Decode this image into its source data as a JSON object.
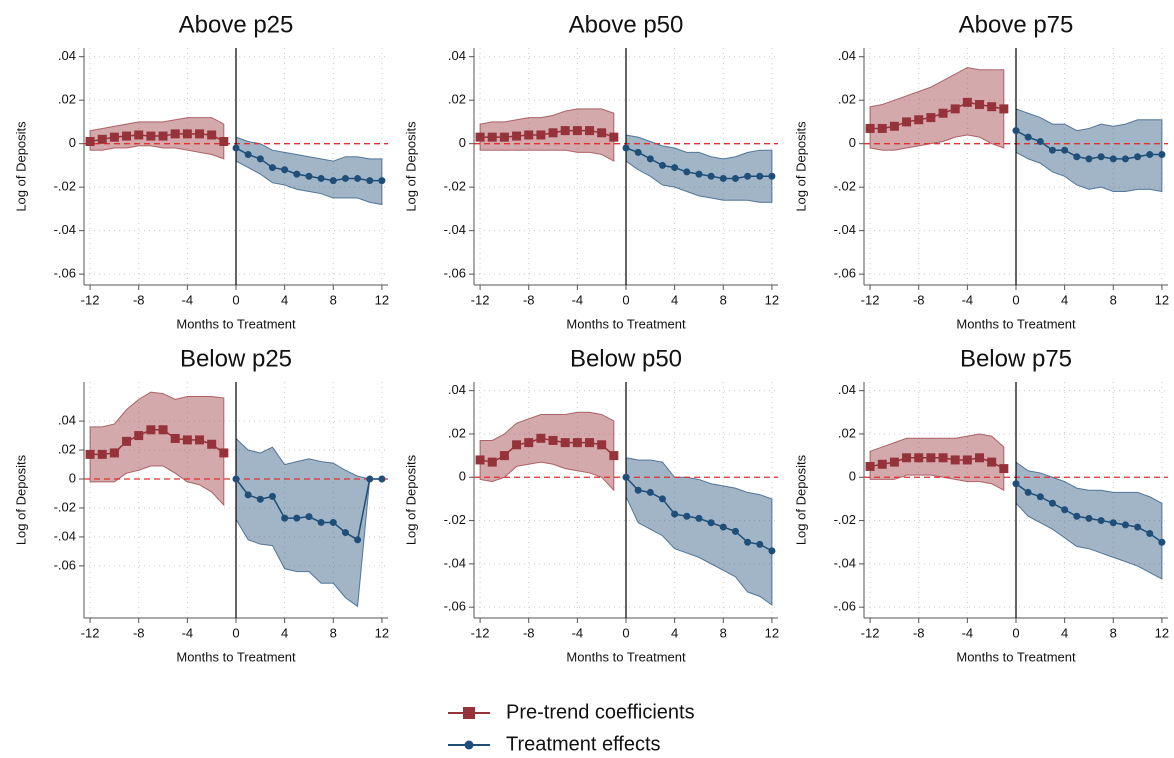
{
  "chart_data": [
    {
      "type": "line",
      "title": "Above p25",
      "x_label": "Months to Treatment",
      "y_label": "Log of Deposits",
      "xlim": [
        -12.5,
        12.5
      ],
      "xticks": [
        -12,
        -8,
        -4,
        0,
        4,
        8,
        12
      ],
      "ylim": [
        -0.065,
        0.044
      ],
      "yticks": [
        {
          "value": 0.04,
          "label": ".04"
        },
        {
          "value": 0.02,
          "label": ".02"
        },
        0,
        {
          "value": -0.02,
          "label": "-.02"
        },
        {
          "value": -0.04,
          "label": "-.04"
        },
        {
          "value": -0.06,
          "label": "-.06"
        }
      ],
      "grid": true,
      "series": [
        {
          "color": "#96333a",
          "marker": "square",
          "x": [
            -12,
            -11,
            -10,
            -9,
            -8,
            -7,
            -6,
            -5,
            -4,
            -3,
            -2,
            -1
          ],
          "values": [
            0.001,
            0.002,
            0.003,
            0.0035,
            0.004,
            0.0035,
            0.0035,
            0.0045,
            0.0045,
            0.0045,
            0.004,
            0.001
          ],
          "lower": [
            -0.003,
            -0.003,
            -0.002,
            -0.002,
            -0.001,
            -0.001,
            -0.002,
            -0.002,
            -0.003,
            -0.004,
            -0.005,
            -0.007
          ],
          "upper": [
            0.006,
            0.007,
            0.008,
            0.009,
            0.01,
            0.01,
            0.01,
            0.011,
            0.012,
            0.012,
            0.012,
            0.009
          ]
        },
        {
          "color": "#1f4e79",
          "marker": "circle",
          "x": [
            0,
            1,
            2,
            3,
            4,
            5,
            6,
            7,
            8,
            9,
            10,
            11,
            12
          ],
          "values": [
            -0.002,
            -0.005,
            -0.007,
            -0.011,
            -0.012,
            -0.014,
            -0.015,
            -0.016,
            -0.017,
            -0.016,
            -0.016,
            -0.017,
            -0.017
          ],
          "lower": [
            -0.008,
            -0.011,
            -0.014,
            -0.018,
            -0.019,
            -0.021,
            -0.022,
            -0.023,
            -0.025,
            -0.025,
            -0.025,
            -0.027,
            -0.028
          ],
          "upper": [
            0.003,
            0.001,
            0,
            -0.003,
            -0.004,
            -0.005,
            -0.006,
            -0.007,
            -0.008,
            -0.006,
            -0.006,
            -0.007,
            -0.007
          ]
        }
      ]
    },
    {
      "type": "line",
      "title": "Above p50",
      "x_label": "Months to Treatment",
      "y_label": "Log of Deposits",
      "xlim": [
        -12.5,
        12.5
      ],
      "xticks": [
        -12,
        -8,
        -4,
        0,
        4,
        8,
        12
      ],
      "ylim": [
        -0.065,
        0.044
      ],
      "yticks": [
        {
          "value": 0.04,
          "label": ".04"
        },
        {
          "value": 0.02,
          "label": ".02"
        },
        0,
        {
          "value": -0.02,
          "label": "-.02"
        },
        {
          "value": -0.04,
          "label": "-.04"
        },
        {
          "value": -0.06,
          "label": "-.06"
        }
      ],
      "grid": true,
      "series": [
        {
          "color": "#96333a",
          "marker": "square",
          "x": [
            -12,
            -11,
            -10,
            -9,
            -8,
            -7,
            -6,
            -5,
            -4,
            -3,
            -2,
            -1
          ],
          "values": [
            0.003,
            0.003,
            0.003,
            0.0035,
            0.004,
            0.004,
            0.005,
            0.006,
            0.006,
            0.006,
            0.005,
            0.003
          ],
          "lower": [
            -0.003,
            -0.003,
            -0.003,
            -0.003,
            -0.003,
            -0.003,
            -0.003,
            -0.003,
            -0.004,
            -0.004,
            -0.005,
            -0.008
          ],
          "upper": [
            0.009,
            0.01,
            0.01,
            0.011,
            0.012,
            0.012,
            0.013,
            0.015,
            0.016,
            0.016,
            0.016,
            0.014
          ]
        },
        {
          "color": "#1f4e79",
          "marker": "circle",
          "x": [
            0,
            1,
            2,
            3,
            4,
            5,
            6,
            7,
            8,
            9,
            10,
            11,
            12
          ],
          "values": [
            -0.002,
            -0.004,
            -0.007,
            -0.01,
            -0.011,
            -0.013,
            -0.014,
            -0.015,
            -0.016,
            -0.016,
            -0.015,
            -0.015,
            -0.015
          ],
          "lower": [
            -0.008,
            -0.012,
            -0.015,
            -0.019,
            -0.02,
            -0.022,
            -0.024,
            -0.025,
            -0.026,
            -0.026,
            -0.026,
            -0.027,
            -0.027
          ],
          "upper": [
            0.004,
            0.003,
            0.001,
            -0.001,
            -0.002,
            -0.004,
            -0.004,
            -0.006,
            -0.007,
            -0.006,
            -0.004,
            -0.003,
            -0.003
          ]
        }
      ]
    },
    {
      "type": "line",
      "title": "Above p75",
      "x_label": "Months to Treatment",
      "y_label": "Log of Deposits",
      "xlim": [
        -12.5,
        12.5
      ],
      "xticks": [
        -12,
        -8,
        -4,
        0,
        4,
        8,
        12
      ],
      "ylim": [
        -0.065,
        0.044
      ],
      "yticks": [
        {
          "value": 0.04,
          "label": ".04"
        },
        {
          "value": 0.02,
          "label": ".02"
        },
        0,
        {
          "value": -0.02,
          "label": "-.02"
        },
        {
          "value": -0.04,
          "label": "-.04"
        },
        {
          "value": -0.06,
          "label": "-.06"
        }
      ],
      "grid": true,
      "series": [
        {
          "color": "#96333a",
          "marker": "square",
          "x": [
            -12,
            -11,
            -10,
            -9,
            -8,
            -7,
            -6,
            -5,
            -4,
            -3,
            -2,
            -1
          ],
          "values": [
            0.007,
            0.007,
            0.008,
            0.01,
            0.011,
            0.012,
            0.014,
            0.016,
            0.019,
            0.018,
            0.017,
            0.016
          ],
          "lower": [
            -0.002,
            -0.003,
            -0.003,
            -0.002,
            -0.001,
            0,
            0.001,
            0.003,
            0.004,
            0.003,
            0,
            -0.002
          ],
          "upper": [
            0.017,
            0.018,
            0.02,
            0.022,
            0.024,
            0.026,
            0.029,
            0.032,
            0.035,
            0.034,
            0.034,
            0.034
          ]
        },
        {
          "color": "#1f4e79",
          "marker": "circle",
          "x": [
            0,
            1,
            2,
            3,
            4,
            5,
            6,
            7,
            8,
            9,
            10,
            11,
            12
          ],
          "values": [
            0.006,
            0.003,
            0.001,
            -0.003,
            -0.003,
            -0.006,
            -0.007,
            -0.006,
            -0.007,
            -0.007,
            -0.006,
            -0.005,
            -0.005
          ],
          "lower": [
            -0.004,
            -0.007,
            -0.009,
            -0.013,
            -0.015,
            -0.019,
            -0.021,
            -0.02,
            -0.022,
            -0.022,
            -0.021,
            -0.021,
            -0.022
          ],
          "upper": [
            0.016,
            0.014,
            0.012,
            0.009,
            0.009,
            0.006,
            0.007,
            0.009,
            0.008,
            0.009,
            0.011,
            0.011,
            0.011
          ]
        }
      ]
    },
    {
      "type": "line",
      "title": "Below p25",
      "x_label": "Months to Treatment",
      "y_label": "Log of Deposits",
      "xlim": [
        -12.5,
        12.5
      ],
      "xticks": [
        -12,
        -8,
        -4,
        0,
        4,
        8,
        12
      ],
      "ylim": [
        -0.096,
        0.067
      ],
      "yticks": [
        {
          "value": 0.04,
          "label": ".04"
        },
        {
          "value": 0.02,
          "label": ".02"
        },
        0,
        {
          "value": -0.02,
          "label": "-.02"
        },
        {
          "value": -0.04,
          "label": "-.04"
        },
        {
          "value": -0.06,
          "label": "-.06"
        }
      ],
      "grid": true,
      "series": [
        {
          "color": "#96333a",
          "marker": "square",
          "x": [
            -12,
            -11,
            -10,
            -9,
            -8,
            -7,
            -6,
            -5,
            -4,
            -3,
            -2,
            -1
          ],
          "values": [
            0.017,
            0.017,
            0.018,
            0.026,
            0.03,
            0.034,
            0.034,
            0.028,
            0.027,
            0.027,
            0.024,
            0.018
          ],
          "lower": [
            -0.002,
            -0.002,
            -0.002,
            0.004,
            0.006,
            0.009,
            0.009,
            0.004,
            -0.002,
            -0.004,
            -0.009,
            -0.018
          ],
          "upper": [
            0.036,
            0.036,
            0.038,
            0.048,
            0.055,
            0.06,
            0.059,
            0.055,
            0.057,
            0.057,
            0.057,
            0.056
          ]
        },
        {
          "color": "#1f4e79",
          "marker": "circle",
          "x": [
            0,
            1,
            2,
            3,
            4,
            5,
            6,
            7,
            8,
            9,
            10,
            11,
            12
          ],
          "values": [
            0,
            -0.011,
            -0.014,
            -0.012,
            -0.027,
            -0.027,
            -0.026,
            -0.03,
            -0.03,
            -0.037,
            -0.042,
            0,
            0
          ],
          "lower": [
            -0.028,
            -0.042,
            -0.045,
            -0.046,
            -0.062,
            -0.064,
            -0.064,
            -0.072,
            -0.072,
            -0.082,
            -0.088,
            0,
            0
          ],
          "upper": [
            0.028,
            0.02,
            0.018,
            0.022,
            0.01,
            0.012,
            0.014,
            0.012,
            0.011,
            0.006,
            0.002,
            0,
            0
          ]
        }
      ]
    },
    {
      "type": "line",
      "title": "Below p50",
      "x_label": "Months to Treatment",
      "y_label": "Log of Deposits",
      "xlim": [
        -12.5,
        12.5
      ],
      "xticks": [
        -12,
        -8,
        -4,
        0,
        4,
        8,
        12
      ],
      "ylim": [
        -0.065,
        0.044
      ],
      "yticks": [
        {
          "value": 0.04,
          "label": ".04"
        },
        {
          "value": 0.02,
          "label": ".02"
        },
        0,
        {
          "value": -0.02,
          "label": "-.02"
        },
        {
          "value": -0.04,
          "label": "-.04"
        },
        {
          "value": -0.06,
          "label": "-.06"
        }
      ],
      "grid": true,
      "series": [
        {
          "color": "#96333a",
          "marker": "square",
          "x": [
            -12,
            -11,
            -10,
            -9,
            -8,
            -7,
            -6,
            -5,
            -4,
            -3,
            -2,
            -1
          ],
          "values": [
            0.008,
            0.007,
            0.01,
            0.015,
            0.016,
            0.018,
            0.017,
            0.016,
            0.016,
            0.016,
            0.015,
            0.01
          ],
          "lower": [
            -0.001,
            -0.002,
            0,
            0.005,
            0.006,
            0.007,
            0.006,
            0.004,
            0.003,
            0.002,
            0,
            -0.006
          ],
          "upper": [
            0.017,
            0.017,
            0.02,
            0.025,
            0.027,
            0.029,
            0.029,
            0.029,
            0.03,
            0.03,
            0.029,
            0.026
          ]
        },
        {
          "color": "#1f4e79",
          "marker": "circle",
          "x": [
            0,
            1,
            2,
            3,
            4,
            5,
            6,
            7,
            8,
            9,
            10,
            11,
            12
          ],
          "values": [
            0,
            -0.006,
            -0.007,
            -0.01,
            -0.017,
            -0.018,
            -0.019,
            -0.021,
            -0.023,
            -0.025,
            -0.03,
            -0.031,
            -0.034
          ],
          "lower": [
            -0.009,
            -0.021,
            -0.024,
            -0.027,
            -0.033,
            -0.035,
            -0.037,
            -0.04,
            -0.043,
            -0.046,
            -0.053,
            -0.055,
            -0.059
          ],
          "upper": [
            0.009,
            0.008,
            0.008,
            0.007,
            0,
            0,
            -0.001,
            -0.003,
            -0.004,
            -0.005,
            -0.007,
            -0.008,
            -0.01
          ]
        }
      ]
    },
    {
      "type": "line",
      "title": "Below p75",
      "x_label": "Months to Treatment",
      "y_label": "Log of Deposits",
      "xlim": [
        -12.5,
        12.5
      ],
      "xticks": [
        -12,
        -8,
        -4,
        0,
        4,
        8,
        12
      ],
      "ylim": [
        -0.065,
        0.044
      ],
      "yticks": [
        {
          "value": 0.04,
          "label": ".04"
        },
        {
          "value": 0.02,
          "label": ".02"
        },
        0,
        {
          "value": -0.02,
          "label": "-.02"
        },
        {
          "value": -0.04,
          "label": "-.04"
        },
        {
          "value": -0.06,
          "label": "-.06"
        }
      ],
      "grid": true,
      "series": [
        {
          "color": "#96333a",
          "marker": "square",
          "x": [
            -12,
            -11,
            -10,
            -9,
            -8,
            -7,
            -6,
            -5,
            -4,
            -3,
            -2,
            -1
          ],
          "values": [
            0.005,
            0.006,
            0.007,
            0.009,
            0.009,
            0.009,
            0.009,
            0.008,
            0.008,
            0.009,
            0.007,
            0.004
          ],
          "lower": [
            -0.001,
            -0.001,
            -0.001,
            0.001,
            0.001,
            0.001,
            0,
            -0.001,
            -0.002,
            -0.002,
            -0.003,
            -0.006
          ],
          "upper": [
            0.012,
            0.014,
            0.016,
            0.018,
            0.018,
            0.018,
            0.018,
            0.018,
            0.019,
            0.02,
            0.019,
            0.014
          ]
        },
        {
          "color": "#1f4e79",
          "marker": "circle",
          "x": [
            0,
            1,
            2,
            3,
            4,
            5,
            6,
            7,
            8,
            9,
            10,
            11,
            12
          ],
          "values": [
            -0.003,
            -0.007,
            -0.009,
            -0.012,
            -0.015,
            -0.018,
            -0.019,
            -0.02,
            -0.021,
            -0.022,
            -0.023,
            -0.026,
            -0.03
          ],
          "lower": [
            -0.012,
            -0.018,
            -0.021,
            -0.024,
            -0.028,
            -0.032,
            -0.033,
            -0.035,
            -0.037,
            -0.039,
            -0.041,
            -0.044,
            -0.047
          ],
          "upper": [
            0.007,
            0.003,
            0.002,
            0,
            -0.002,
            -0.005,
            -0.006,
            -0.006,
            -0.007,
            -0.007,
            -0.007,
            -0.009,
            -0.012
          ]
        }
      ]
    }
  ],
  "legend": [
    {
      "name": "Pre-trend coefficients",
      "color": "#96333a",
      "marker": "square"
    },
    {
      "name": "Treatment effects",
      "color": "#1f4e79",
      "marker": "circle"
    }
  ]
}
